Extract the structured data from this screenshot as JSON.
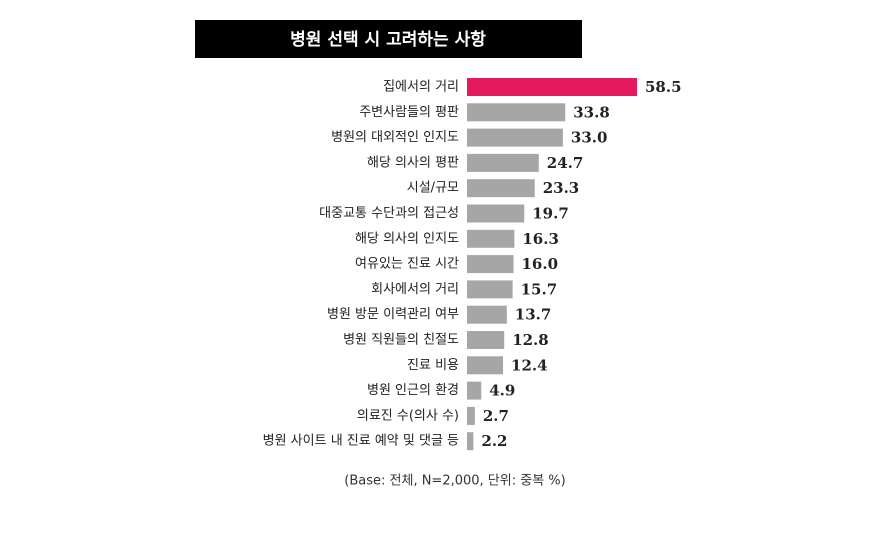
{
  "chart_data": {
    "type": "hbar",
    "title": "병원 선택 시 고려하는 사항",
    "categories": [
      "집에서의 거리",
      "주변사람들의 평판",
      "병원의 대외적인 인지도",
      "해당 의사의 평판",
      "시설/규모",
      "대중교통 수단과의 접근성",
      "해당 의사의 인지도",
      "여유있는 진료 시간",
      "회사에서의 거리",
      "병원 방문 이력관리 여부",
      "병원 직원들의 친절도",
      "진료 비용",
      "병원 인근의 환경",
      "의료진 수(의사 수)",
      "병원 사이트 내 진료 예약 및 댓글 등"
    ],
    "values": [
      58.5,
      33.8,
      33.0,
      24.7,
      23.3,
      19.7,
      16.3,
      16.0,
      15.7,
      13.7,
      12.8,
      12.4,
      4.9,
      2.7,
      2.2
    ],
    "value_labels": [
      "58.5",
      "33.8",
      "33.0",
      "24.7",
      "23.3",
      "19.7",
      "16.3",
      "16.0",
      "15.7",
      "13.7",
      "12.8",
      "12.4",
      "4.9",
      "2.7",
      "2.2"
    ],
    "colors": [
      "#e5195e",
      "#a6a6a6",
      "#a6a6a6",
      "#a6a6a6",
      "#a6a6a6",
      "#a6a6a6",
      "#a6a6a6",
      "#a6a6a6",
      "#a6a6a6",
      "#a6a6a6",
      "#a6a6a6",
      "#a6a6a6",
      "#a6a6a6",
      "#a6a6a6",
      "#a6a6a6"
    ],
    "note": "(Base: 전체, N=2,000, 단위: 중복 %)"
  }
}
